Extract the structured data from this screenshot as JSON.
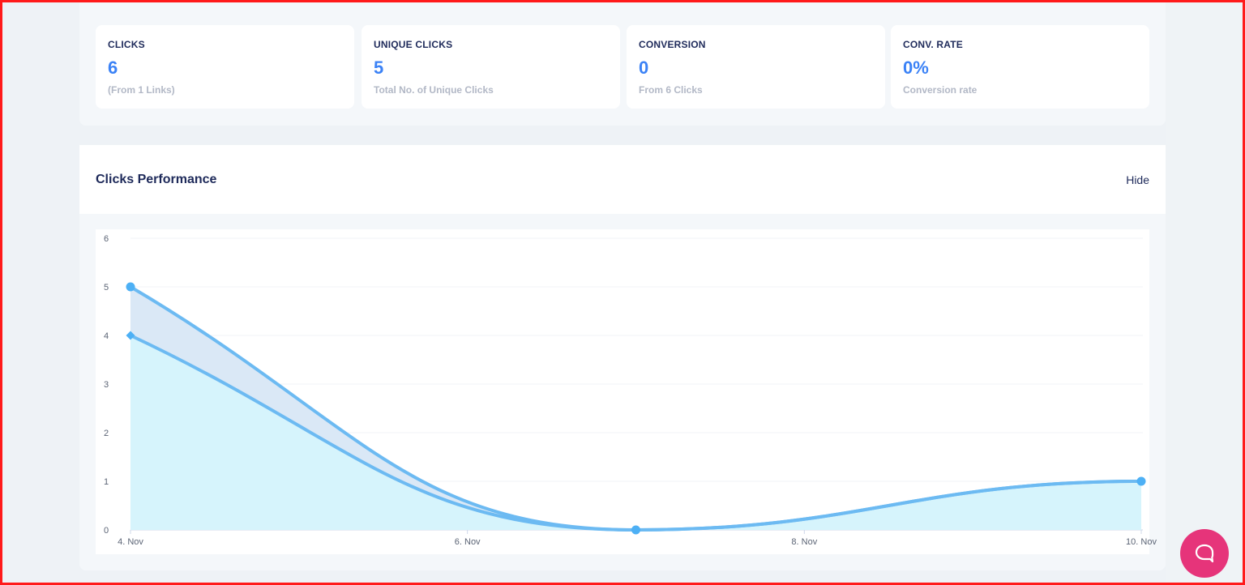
{
  "stats": [
    {
      "title": "CLICKS",
      "value": "6",
      "sub": "(From 1 Links)"
    },
    {
      "title": "UNIQUE CLICKS",
      "value": "5",
      "sub": "Total No. of Unique Clicks"
    },
    {
      "title": "CONVERSION",
      "value": "0",
      "sub": "From 6 Clicks"
    },
    {
      "title": "CONV. RATE",
      "value": "0%",
      "sub": "Conversion rate"
    }
  ],
  "performance": {
    "title": "Clicks Performance",
    "hide_label": "Hide"
  },
  "chat": {
    "icon": "chat-bubble-icon"
  },
  "colors": {
    "accent": "#3b82f6",
    "line": "#6cbaf2",
    "area_light": "#d6f4fc",
    "area_band": "#d8e7f6",
    "chat": "#e6347a",
    "title": "#1e2a5a"
  },
  "chart_data": {
    "type": "area",
    "x": [
      "4. Nov",
      "7. Nov",
      "10. Nov"
    ],
    "x_ticks": [
      "4. Nov",
      "6. Nov",
      "8. Nov",
      "10. Nov"
    ],
    "xlim": [
      "4. Nov",
      "10. Nov"
    ],
    "y_ticks": [
      "0",
      "1",
      "2",
      "3",
      "4",
      "5",
      "6"
    ],
    "ylim": [
      0,
      6
    ],
    "series": [
      {
        "values": [
          5,
          0,
          1
        ]
      },
      {
        "values": [
          4,
          0,
          1
        ]
      }
    ],
    "grid": true
  }
}
